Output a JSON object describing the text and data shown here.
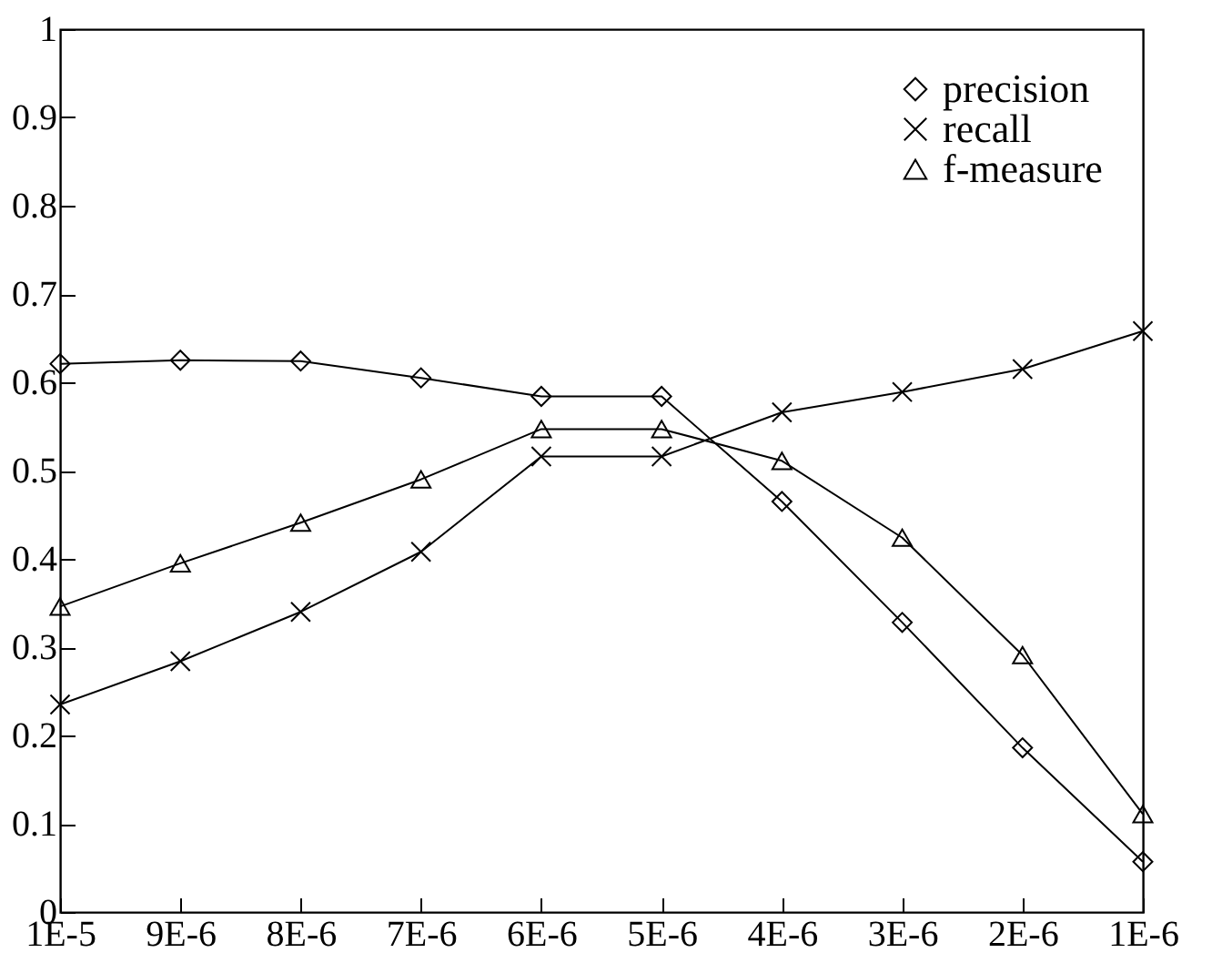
{
  "chart_data": {
    "type": "line",
    "categories": [
      "1E-5",
      "9E-6",
      "8E-6",
      "7E-6",
      "6E-6",
      "5E-6",
      "4E-6",
      "3E-6",
      "2E-6",
      "1E-6"
    ],
    "series": [
      {
        "name": "precision",
        "color": "#000000",
        "marker": "diamond",
        "values": [
          0.621,
          0.625,
          0.624,
          0.605,
          0.584,
          0.584,
          0.465,
          0.328,
          0.186,
          0.057
        ]
      },
      {
        "name": "recall",
        "color": "#000000",
        "marker": "cross",
        "values": [
          0.235,
          0.284,
          0.34,
          0.408,
          0.516,
          0.516,
          0.566,
          0.589,
          0.615,
          0.658
        ]
      },
      {
        "name": "f-measure",
        "color": "#000000",
        "marker": "triangle",
        "values": [
          0.346,
          0.395,
          0.441,
          0.49,
          0.547,
          0.547,
          0.511,
          0.424,
          0.291,
          0.111
        ]
      }
    ],
    "ylim": [
      0,
      1
    ],
    "yticks": [
      0,
      0.1,
      0.2,
      0.3,
      0.4,
      0.5,
      0.6,
      0.7,
      0.8,
      0.9,
      1
    ],
    "grid": false,
    "legend": "top right"
  }
}
